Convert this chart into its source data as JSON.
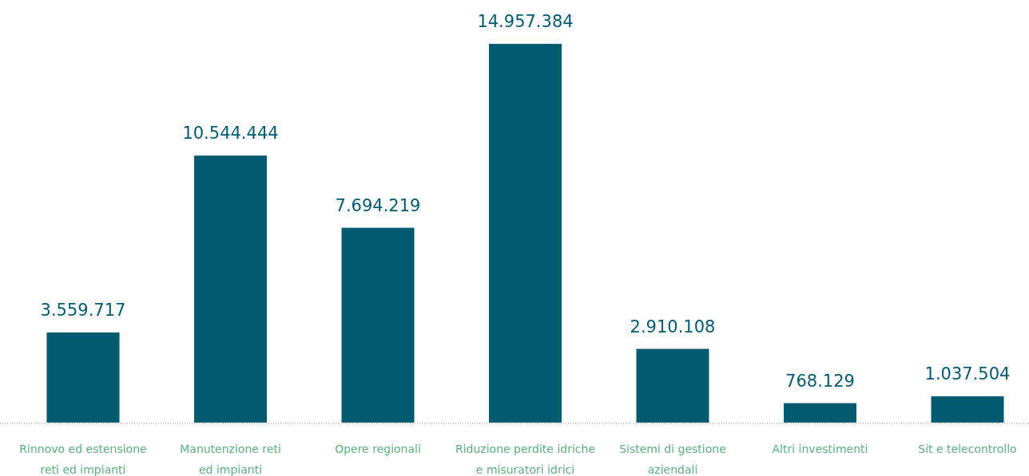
{
  "chart_data": {
    "type": "bar",
    "categories": [
      "Rinnovo ed estensione\nreti ed impianti",
      "Manutenzione reti\ned impianti",
      "Opere regionali",
      "Riduzione perdite idriche\ne misuratori idrici",
      "Sistemi di gestione\naziendali",
      "Altri investimenti",
      "Sit e telecontrollo"
    ],
    "values": [
      3559717,
      10544444,
      7694219,
      14957384,
      2910108,
      768129,
      1037504
    ],
    "value_labels": [
      "3.559.717",
      "10.544.444",
      "7.694.219",
      "14.957.384",
      "2.910.108",
      "768.129",
      "1.037.504"
    ],
    "color": "#005a70"
  }
}
